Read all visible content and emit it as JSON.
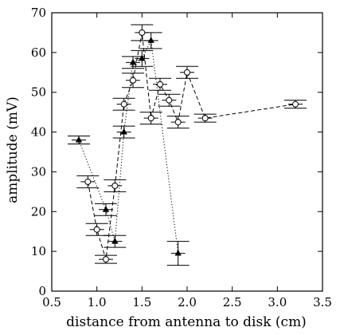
{
  "chart_data": {
    "type": "scatter",
    "title": "",
    "xlabel": "distance from antenna to disk (cm)",
    "ylabel": "amplitude (mV)",
    "xlim": [
      0.5,
      3.5
    ],
    "ylim": [
      0,
      70
    ],
    "xticks": [
      "0.5",
      "1.0",
      "1.5",
      "2.0",
      "2.5",
      "3.0",
      "3.5"
    ],
    "yticks": [
      "0",
      "10",
      "20",
      "30",
      "40",
      "50",
      "60",
      "70"
    ],
    "xtick_values": [
      0.5,
      1.0,
      1.5,
      2.0,
      2.5,
      3.0,
      3.5
    ],
    "ytick_values": [
      0,
      10,
      20,
      30,
      40,
      50,
      60,
      70
    ],
    "grid": false,
    "legend": "none",
    "series": [
      {
        "marker": "circle",
        "line_style": "dashed",
        "color": "#000000",
        "x": [
          0.9,
          1.0,
          1.1,
          1.2,
          1.3,
          1.4,
          1.5,
          1.6,
          1.7,
          1.8,
          1.9,
          2.0,
          2.2,
          3.2
        ],
        "y": [
          27.5,
          15.5,
          8.0,
          26.5,
          47.0,
          53.0,
          65.0,
          43.5,
          52.0,
          48.0,
          42.5,
          55.0,
          43.5,
          47.0
        ],
        "yerr": [
          1.5,
          1.5,
          1.0,
          1.5,
          1.5,
          1.8,
          2.0,
          1.5,
          1.5,
          1.5,
          1.5,
          1.5,
          1.0,
          1.0
        ]
      },
      {
        "marker": "triangle",
        "line_style": "dotted",
        "color": "#000000",
        "x": [
          0.8,
          1.1,
          1.2,
          1.3,
          1.4,
          1.5,
          1.6,
          1.9
        ],
        "y": [
          38.0,
          20.5,
          12.5,
          40.0,
          57.5,
          58.5,
          63.0,
          9.5
        ],
        "yerr": [
          1.0,
          1.5,
          1.5,
          1.5,
          1.5,
          2.0,
          2.0,
          3.0
        ]
      }
    ]
  }
}
